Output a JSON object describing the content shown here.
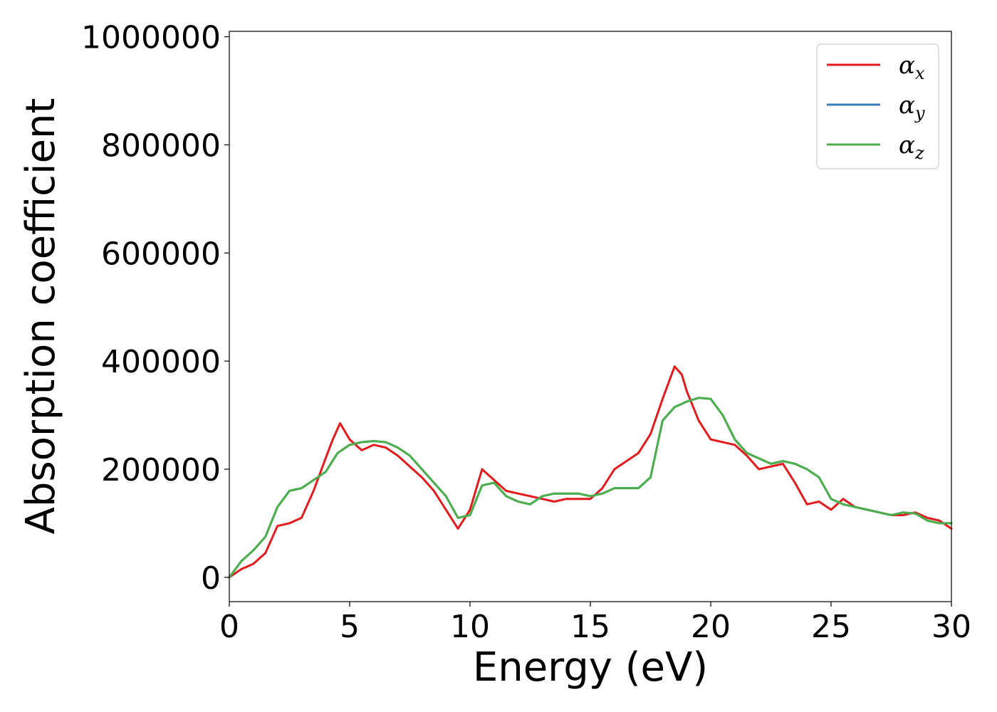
{
  "chart_data": {
    "type": "line",
    "title": "",
    "xlabel": "Energy (eV)",
    "ylabel": "Absorption coefficient",
    "xlim": [
      0,
      30
    ],
    "ylim": [
      -45000,
      1010000
    ],
    "x_ticks": [
      0,
      5,
      10,
      15,
      20,
      25,
      30
    ],
    "x_tick_labels": [
      "0",
      "5",
      "10",
      "15",
      "20",
      "25",
      "30"
    ],
    "y_ticks": [
      0,
      200000,
      400000,
      600000,
      800000,
      1000000
    ],
    "y_tick_labels": [
      "0",
      "200000",
      "400000",
      "600000",
      "800000",
      "1000000"
    ],
    "grid": false,
    "legend_position": "top-right",
    "series": [
      {
        "name": "α_x",
        "legend_symbol": "α",
        "legend_subscript": "x",
        "color": "#e41a1c",
        "x": [
          0,
          0.5,
          1.0,
          1.5,
          2.0,
          2.5,
          3.0,
          3.5,
          4.0,
          4.3,
          4.6,
          5.0,
          5.5,
          6.0,
          6.5,
          7.0,
          7.5,
          8.0,
          8.5,
          9.0,
          9.5,
          10.0,
          10.5,
          11.0,
          11.5,
          12.0,
          12.5,
          13.0,
          13.5,
          14.0,
          14.5,
          15.0,
          15.5,
          16.0,
          16.5,
          17.0,
          17.5,
          18.0,
          18.5,
          18.8,
          19.0,
          19.5,
          20.0,
          20.5,
          21.0,
          21.5,
          22.0,
          22.5,
          23.0,
          23.5,
          24.0,
          24.5,
          25.0,
          25.5,
          26.0,
          26.5,
          27.0,
          27.5,
          28.0,
          28.5,
          29.0,
          29.5,
          30.0
        ],
        "y": [
          0,
          15000,
          25000,
          45000,
          95000,
          100000,
          110000,
          160000,
          220000,
          255000,
          285000,
          255000,
          235000,
          245000,
          240000,
          225000,
          205000,
          185000,
          160000,
          125000,
          90000,
          125000,
          200000,
          180000,
          160000,
          155000,
          150000,
          145000,
          140000,
          145000,
          145000,
          145000,
          165000,
          200000,
          215000,
          230000,
          265000,
          330000,
          390000,
          375000,
          345000,
          290000,
          255000,
          250000,
          245000,
          225000,
          200000,
          205000,
          210000,
          175000,
          135000,
          140000,
          125000,
          145000,
          130000,
          125000,
          120000,
          115000,
          115000,
          120000,
          110000,
          105000,
          90000
        ]
      },
      {
        "name": "α_y",
        "legend_symbol": "α",
        "legend_subscript": "y",
        "color": "#377eb8",
        "x": [
          0,
          0.5,
          1.0,
          1.5,
          2.0,
          2.5,
          3.0,
          3.5,
          4.0,
          4.5,
          5.0,
          5.5,
          6.0,
          6.5,
          7.0,
          7.5,
          8.0,
          8.5,
          9.0,
          9.5,
          10.0,
          10.5,
          11.0,
          11.5,
          12.0,
          12.5,
          13.0,
          13.5,
          14.0,
          14.5,
          15.0,
          15.5,
          16.0,
          16.5,
          17.0,
          17.5,
          18.0,
          18.5,
          19.0,
          19.5,
          20.0,
          20.5,
          21.0,
          21.5,
          22.0,
          22.5,
          23.0,
          23.5,
          24.0,
          24.5,
          25.0,
          25.5,
          26.0,
          26.5,
          27.0,
          27.5,
          28.0,
          28.5,
          29.0,
          29.5,
          30.0
        ],
        "y": [
          0,
          30000,
          50000,
          75000,
          130000,
          160000,
          165000,
          180000,
          195000,
          230000,
          245000,
          250000,
          252000,
          250000,
          240000,
          225000,
          200000,
          175000,
          150000,
          110000,
          115000,
          170000,
          175000,
          150000,
          140000,
          135000,
          150000,
          155000,
          155000,
          155000,
          150000,
          155000,
          165000,
          165000,
          165000,
          185000,
          290000,
          315000,
          325000,
          332000,
          330000,
          300000,
          255000,
          230000,
          220000,
          210000,
          215000,
          210000,
          200000,
          185000,
          145000,
          135000,
          130000,
          125000,
          120000,
          115000,
          120000,
          118000,
          105000,
          100000,
          100000
        ]
      },
      {
        "name": "α_z",
        "legend_symbol": "α",
        "legend_subscript": "z",
        "color": "#4daf4a",
        "x": [
          0,
          0.5,
          1.0,
          1.5,
          2.0,
          2.5,
          3.0,
          3.5,
          4.0,
          4.5,
          5.0,
          5.5,
          6.0,
          6.5,
          7.0,
          7.5,
          8.0,
          8.5,
          9.0,
          9.5,
          10.0,
          10.5,
          11.0,
          11.5,
          12.0,
          12.5,
          13.0,
          13.5,
          14.0,
          14.5,
          15.0,
          15.5,
          16.0,
          16.5,
          17.0,
          17.5,
          18.0,
          18.5,
          19.0,
          19.5,
          20.0,
          20.5,
          21.0,
          21.5,
          22.0,
          22.5,
          23.0,
          23.5,
          24.0,
          24.5,
          25.0,
          25.5,
          26.0,
          26.5,
          27.0,
          27.5,
          28.0,
          28.5,
          29.0,
          29.5,
          30.0
        ],
        "y": [
          0,
          30000,
          50000,
          75000,
          130000,
          160000,
          165000,
          180000,
          195000,
          230000,
          245000,
          250000,
          252000,
          250000,
          240000,
          225000,
          200000,
          175000,
          150000,
          110000,
          115000,
          170000,
          175000,
          150000,
          140000,
          135000,
          150000,
          155000,
          155000,
          155000,
          150000,
          155000,
          165000,
          165000,
          165000,
          185000,
          290000,
          315000,
          325000,
          332000,
          330000,
          300000,
          255000,
          230000,
          220000,
          210000,
          215000,
          210000,
          200000,
          185000,
          145000,
          135000,
          130000,
          125000,
          120000,
          115000,
          120000,
          118000,
          105000,
          100000,
          100000
        ]
      }
    ]
  }
}
